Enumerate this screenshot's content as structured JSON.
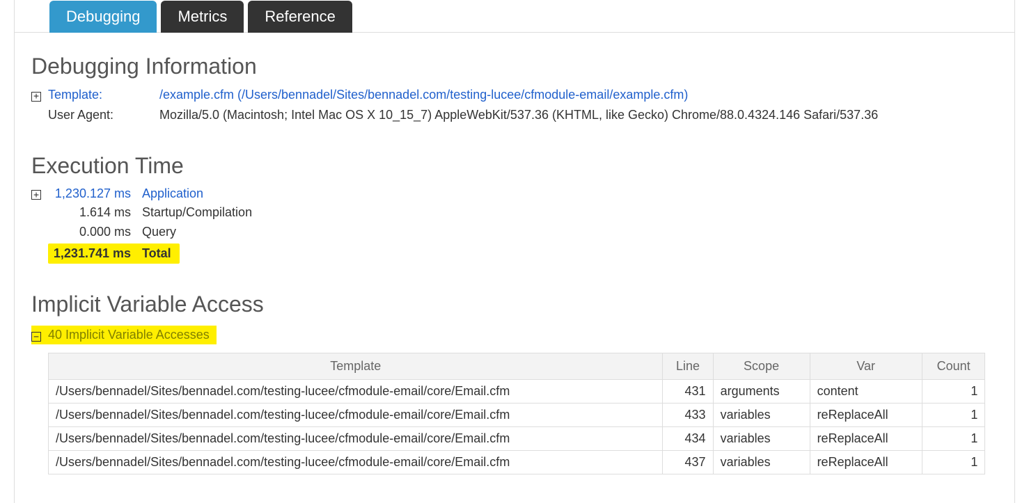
{
  "tabs": {
    "debugging": "Debugging",
    "metrics": "Metrics",
    "reference": "Reference"
  },
  "debug_info": {
    "heading": "Debugging Information",
    "template_label": "Template:",
    "template_value": "/example.cfm (/Users/bennadel/Sites/bennadel.com/testing-lucee/cfmodule-email/example.cfm)",
    "ua_label": "User Agent:",
    "ua_value": "Mozilla/5.0 (Macintosh; Intel Mac OS X 10_15_7) AppleWebKit/537.36 (KHTML, like Gecko) Chrome/88.0.4324.146 Safari/537.36"
  },
  "exec": {
    "heading": "Execution Time",
    "rows": [
      {
        "time": "1,230.127 ms",
        "label": "Application",
        "link": true
      },
      {
        "time": "1.614 ms",
        "label": "Startup/Compilation",
        "link": false
      },
      {
        "time": "0.000 ms",
        "label": "Query",
        "link": false
      }
    ],
    "total_time": "1,231.741 ms",
    "total_label": "Total"
  },
  "implicit": {
    "heading": "Implicit Variable Access",
    "summary": "40 Implicit Variable Accesses",
    "columns": [
      "Template",
      "Line",
      "Scope",
      "Var",
      "Count"
    ],
    "rows": [
      {
        "template": "/Users/bennadel/Sites/bennadel.com/testing-lucee/cfmodule-email/core/Email.cfm",
        "line": "431",
        "scope": "arguments",
        "var": "content",
        "count": "1"
      },
      {
        "template": "/Users/bennadel/Sites/bennadel.com/testing-lucee/cfmodule-email/core/Email.cfm",
        "line": "433",
        "scope": "variables",
        "var": "reReplaceAll",
        "count": "1"
      },
      {
        "template": "/Users/bennadel/Sites/bennadel.com/testing-lucee/cfmodule-email/core/Email.cfm",
        "line": "434",
        "scope": "variables",
        "var": "reReplaceAll",
        "count": "1"
      },
      {
        "template": "/Users/bennadel/Sites/bennadel.com/testing-lucee/cfmodule-email/core/Email.cfm",
        "line": "437",
        "scope": "variables",
        "var": "reReplaceAll",
        "count": "1"
      }
    ]
  },
  "icons": {
    "expand": "+",
    "collapse": "−"
  }
}
